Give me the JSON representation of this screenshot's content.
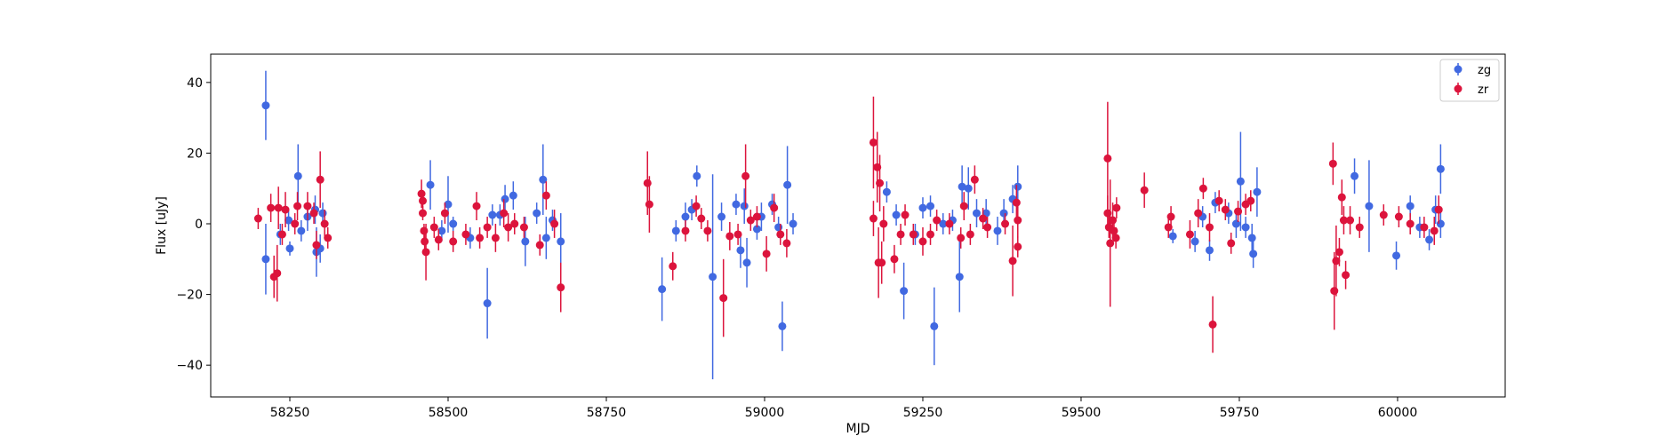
{
  "chart_data": {
    "type": "scatter",
    "title": "",
    "xlabel": "MJD",
    "ylabel": "Flux [uJy]",
    "xlim": [
      58125,
      60170
    ],
    "ylim": [
      -49,
      48
    ],
    "xticks": [
      58250,
      58500,
      58750,
      59000,
      59250,
      59500,
      59750,
      60000
    ],
    "yticks": [
      -40,
      -20,
      0,
      20,
      40
    ],
    "grid": false,
    "legend_position": "top-right",
    "series": [
      {
        "name": "zg",
        "color": "#4169e1",
        "points": [
          [
            58212,
            33.5,
            9.8
          ],
          [
            58212,
            -10,
            10
          ],
          [
            58235,
            -3,
            3
          ],
          [
            58248,
            1,
            3
          ],
          [
            58250,
            -7,
            2
          ],
          [
            58263,
            13.5,
            9
          ],
          [
            58268,
            -2,
            3
          ],
          [
            58278,
            2,
            4
          ],
          [
            58290,
            4,
            4
          ],
          [
            58292,
            -8,
            7
          ],
          [
            58298,
            -7,
            4
          ],
          [
            58302,
            3,
            3
          ],
          [
            58472,
            11,
            7
          ],
          [
            58490,
            -2,
            3
          ],
          [
            58500,
            5.5,
            8
          ],
          [
            58508,
            0,
            2
          ],
          [
            58535,
            -4,
            3
          ],
          [
            58562,
            -22.5,
            10
          ],
          [
            58570,
            2.5,
            3
          ],
          [
            58582,
            2.5,
            3
          ],
          [
            58590,
            7,
            4
          ],
          [
            58603,
            8,
            4
          ],
          [
            58622,
            -5,
            7
          ],
          [
            58640,
            3,
            3
          ],
          [
            58650,
            12.5,
            10
          ],
          [
            58655,
            -4,
            6
          ],
          [
            58665,
            1,
            3
          ],
          [
            58678,
            -5,
            8
          ],
          [
            58838,
            -18.5,
            9
          ],
          [
            58860,
            -2,
            3
          ],
          [
            58875,
            2,
            4
          ],
          [
            58885,
            4,
            3
          ],
          [
            58893,
            13.5,
            3
          ],
          [
            58918,
            -15,
            29
          ],
          [
            58932,
            2,
            4
          ],
          [
            58955,
            5.5,
            3
          ],
          [
            58962,
            -7.5,
            5
          ],
          [
            58968,
            5,
            5
          ],
          [
            58972,
            -11,
            7
          ],
          [
            58988,
            -1.5,
            3
          ],
          [
            58995,
            2,
            4
          ],
          [
            59012,
            5.5,
            3
          ],
          [
            59022,
            -1,
            3
          ],
          [
            59028,
            -29,
            7
          ],
          [
            59036,
            11,
            11
          ],
          [
            59045,
            0,
            3
          ],
          [
            59193,
            9,
            3
          ],
          [
            59208,
            2.5,
            3
          ],
          [
            59220,
            -19,
            8
          ],
          [
            59238,
            -3,
            3
          ],
          [
            59250,
            4.5,
            3
          ],
          [
            59262,
            5,
            3
          ],
          [
            59268,
            -29,
            11
          ],
          [
            59282,
            0,
            3
          ],
          [
            59297,
            1,
            3
          ],
          [
            59308,
            -15,
            10
          ],
          [
            59312,
            10.5,
            6
          ],
          [
            59322,
            10,
            6
          ],
          [
            59335,
            3,
            4
          ],
          [
            59350,
            3,
            4
          ],
          [
            59368,
            -2,
            4
          ],
          [
            59378,
            3,
            4
          ],
          [
            59392,
            7,
            4
          ],
          [
            59400,
            10.5,
            6
          ],
          [
            59645,
            -3.5,
            2
          ],
          [
            59680,
            -5,
            3
          ],
          [
            59692,
            2,
            3
          ],
          [
            59703,
            -7.5,
            3
          ],
          [
            59712,
            6,
            3
          ],
          [
            59733,
            3,
            3
          ],
          [
            59745,
            0,
            4
          ],
          [
            59752,
            12,
            14
          ],
          [
            59760,
            -1,
            3
          ],
          [
            59770,
            -4,
            4
          ],
          [
            59772,
            -8.5,
            4
          ],
          [
            59778,
            9,
            7
          ],
          [
            59932,
            13.5,
            5
          ],
          [
            59955,
            5,
            13
          ],
          [
            59998,
            -9,
            4
          ],
          [
            60020,
            5,
            3
          ],
          [
            60035,
            -1,
            3
          ],
          [
            60050,
            -4.5,
            3
          ],
          [
            60060,
            4,
            4
          ],
          [
            60068,
            15.5,
            7
          ],
          [
            60068,
            0,
            4
          ]
        ]
      },
      {
        "name": "zr",
        "color": "#dc143c",
        "points": [
          [
            58200,
            1.5,
            3
          ],
          [
            58220,
            4.5,
            4
          ],
          [
            58225,
            -15,
            6
          ],
          [
            58230,
            -14,
            8
          ],
          [
            58232,
            4.5,
            6
          ],
          [
            58238,
            -3,
            3
          ],
          [
            58243,
            4,
            5
          ],
          [
            58258,
            0,
            3
          ],
          [
            58262,
            5,
            4
          ],
          [
            58278,
            5,
            4
          ],
          [
            58288,
            3,
            3
          ],
          [
            58292,
            -6,
            4
          ],
          [
            58298,
            12.5,
            8
          ],
          [
            58305,
            0,
            4
          ],
          [
            58310,
            -4,
            3
          ],
          [
            58458,
            8.5,
            4
          ],
          [
            58460,
            6.5,
            3
          ],
          [
            58460,
            3,
            2
          ],
          [
            58462,
            -2,
            2
          ],
          [
            58463,
            -5,
            3
          ],
          [
            58465,
            -8,
            8
          ],
          [
            58478,
            -1,
            3
          ],
          [
            58485,
            -4.5,
            3
          ],
          [
            58495,
            3,
            3
          ],
          [
            58508,
            -5,
            3
          ],
          [
            58528,
            -3,
            3
          ],
          [
            58545,
            5,
            4
          ],
          [
            58550,
            -4,
            3
          ],
          [
            58562,
            -1,
            3
          ],
          [
            58575,
            -4,
            4
          ],
          [
            58588,
            3,
            4
          ],
          [
            58595,
            -1,
            4
          ],
          [
            58605,
            0,
            3
          ],
          [
            58620,
            -1,
            3
          ],
          [
            58645,
            -6,
            3
          ],
          [
            58655,
            8,
            4
          ],
          [
            58668,
            0,
            4
          ],
          [
            58678,
            -18,
            7
          ],
          [
            58815,
            11.5,
            9
          ],
          [
            58818,
            5.5,
            8
          ],
          [
            58855,
            -12,
            4
          ],
          [
            58875,
            -2,
            3
          ],
          [
            58892,
            5,
            3
          ],
          [
            58900,
            1.5,
            3
          ],
          [
            58910,
            -2,
            3
          ],
          [
            58935,
            -21,
            11
          ],
          [
            58945,
            -3.5,
            4
          ],
          [
            58958,
            -3,
            3
          ],
          [
            58970,
            13.5,
            9
          ],
          [
            58978,
            1,
            3
          ],
          [
            58988,
            2,
            3
          ],
          [
            59003,
            -8.5,
            5
          ],
          [
            59015,
            4.5,
            4
          ],
          [
            59025,
            -3,
            3
          ],
          [
            59035,
            -5.5,
            4
          ],
          [
            59172,
            23,
            13
          ],
          [
            59172,
            1.5,
            5
          ],
          [
            59178,
            16,
            10
          ],
          [
            59180,
            -11,
            10
          ],
          [
            59182,
            11.5,
            8
          ],
          [
            59185,
            -11,
            6
          ],
          [
            59188,
            0,
            5
          ],
          [
            59205,
            -10,
            4
          ],
          [
            59215,
            -3,
            3
          ],
          [
            59222,
            2.5,
            3
          ],
          [
            59235,
            -3,
            3
          ],
          [
            59250,
            -5,
            4
          ],
          [
            59262,
            -3,
            3
          ],
          [
            59272,
            1,
            3
          ],
          [
            59292,
            0,
            3
          ],
          [
            59310,
            -4,
            3
          ],
          [
            59315,
            5,
            4
          ],
          [
            59325,
            -3,
            3
          ],
          [
            59332,
            12.5,
            4
          ],
          [
            59345,
            1.5,
            3
          ],
          [
            59352,
            -1,
            3
          ],
          [
            59380,
            0,
            3
          ],
          [
            59392,
            -10.5,
            10
          ],
          [
            59398,
            6,
            5
          ],
          [
            59400,
            1,
            5
          ],
          [
            59400,
            -6.5,
            3
          ],
          [
            59542,
            18.5,
            16
          ],
          [
            59542,
            3,
            5
          ],
          [
            59544,
            -1,
            3
          ],
          [
            59546,
            -5.5,
            18
          ],
          [
            59550,
            1,
            5
          ],
          [
            59552,
            -2,
            3
          ],
          [
            59555,
            -4,
            3
          ],
          [
            59556,
            4.5,
            3
          ],
          [
            59600,
            9.5,
            5
          ],
          [
            59638,
            -1,
            3
          ],
          [
            59642,
            2,
            3
          ],
          [
            59672,
            -3,
            4
          ],
          [
            59685,
            3,
            4
          ],
          [
            59693,
            10,
            3
          ],
          [
            59703,
            -1,
            4
          ],
          [
            59708,
            -28.5,
            8
          ],
          [
            59718,
            6.5,
            3
          ],
          [
            59728,
            4,
            3
          ],
          [
            59737,
            -5.5,
            3
          ],
          [
            59748,
            3.5,
            3
          ],
          [
            59760,
            5.5,
            3
          ],
          [
            59768,
            6.5,
            3
          ],
          [
            59898,
            17,
            6
          ],
          [
            59900,
            -19,
            11
          ],
          [
            59903,
            -10.5,
            10
          ],
          [
            59908,
            -8,
            4
          ],
          [
            59912,
            7.5,
            5
          ],
          [
            59915,
            1,
            4
          ],
          [
            59918,
            -14.5,
            4
          ],
          [
            59925,
            1,
            4
          ],
          [
            59940,
            -1,
            3
          ],
          [
            59978,
            2.5,
            3
          ],
          [
            60002,
            2,
            3
          ],
          [
            60020,
            0,
            3
          ],
          [
            60042,
            -1,
            3
          ],
          [
            60058,
            -2,
            4
          ],
          [
            60065,
            4,
            4
          ]
        ]
      }
    ]
  }
}
